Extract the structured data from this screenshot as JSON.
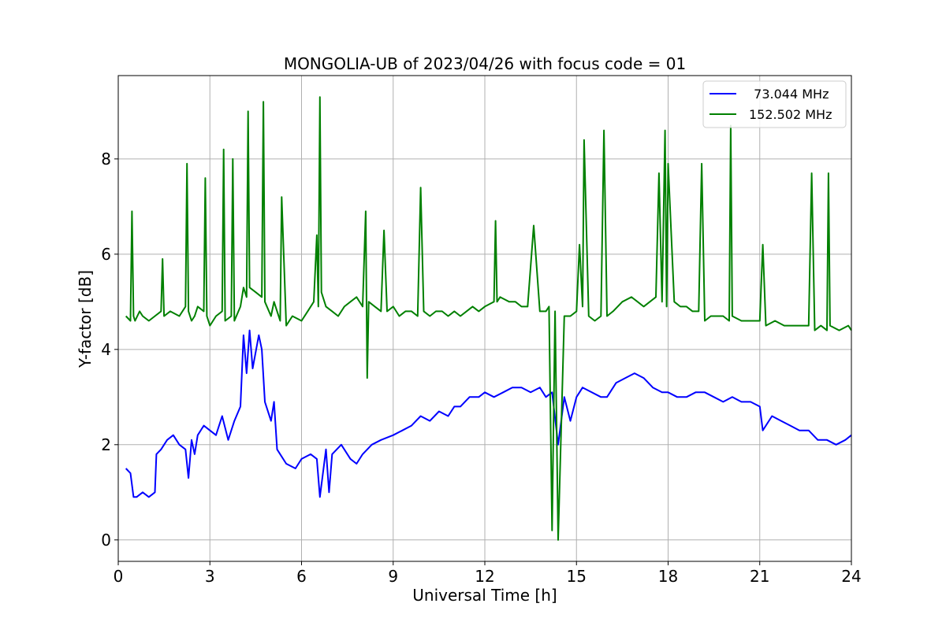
{
  "chart_data": {
    "type": "line",
    "title": "MONGOLIA-UB of 2023/04/26 with focus code = 01",
    "xlabel": "Universal Time [h]",
    "ylabel": "Y-factor [dB]",
    "xlim": [
      0,
      24
    ],
    "ylim": [
      -0.45,
      9.75
    ],
    "xticks": [
      0,
      3,
      6,
      9,
      12,
      15,
      18,
      21,
      24
    ],
    "yticks": [
      0,
      2,
      4,
      6,
      8
    ],
    "grid": true,
    "legend_position": "top-right",
    "series": [
      {
        "name": "  73.044 MHz",
        "color": "#0000ff",
        "x": [
          0.25,
          0.4,
          0.5,
          0.6,
          0.8,
          1.0,
          1.2,
          1.25,
          1.4,
          1.6,
          1.8,
          2.0,
          2.2,
          2.3,
          2.4,
          2.5,
          2.6,
          2.8,
          3.0,
          3.2,
          3.4,
          3.6,
          3.8,
          4.0,
          4.1,
          4.2,
          4.3,
          4.4,
          4.6,
          4.7,
          4.8,
          5.0,
          5.1,
          5.2,
          5.3,
          5.5,
          5.8,
          6.0,
          6.3,
          6.5,
          6.6,
          6.8,
          6.9,
          7.0,
          7.3,
          7.6,
          7.8,
          8.0,
          8.3,
          8.6,
          9.0,
          9.3,
          9.6,
          9.9,
          10.2,
          10.5,
          10.8,
          11.0,
          11.2,
          11.5,
          11.8,
          12.0,
          12.3,
          12.6,
          12.9,
          13.2,
          13.5,
          13.8,
          14.0,
          14.2,
          14.4,
          14.6,
          14.8,
          15.0,
          15.2,
          15.5,
          15.8,
          16.0,
          16.3,
          16.6,
          16.9,
          17.2,
          17.5,
          17.8,
          18.0,
          18.3,
          18.6,
          18.9,
          19.2,
          19.5,
          19.8,
          20.1,
          20.4,
          20.7,
          21.0,
          21.1,
          21.4,
          21.7,
          22.0,
          22.3,
          22.6,
          22.9,
          23.2,
          23.5,
          23.8,
          24.0
        ],
        "y": [
          1.5,
          1.4,
          0.9,
          0.9,
          1.0,
          0.9,
          1.0,
          1.8,
          1.9,
          2.1,
          2.2,
          2.0,
          1.9,
          1.3,
          2.1,
          1.8,
          2.2,
          2.4,
          2.3,
          2.2,
          2.6,
          2.1,
          2.5,
          2.8,
          4.3,
          3.5,
          4.4,
          3.6,
          4.3,
          4.0,
          2.9,
          2.5,
          2.9,
          1.9,
          1.8,
          1.6,
          1.5,
          1.7,
          1.8,
          1.7,
          0.9,
          1.9,
          1.0,
          1.8,
          2.0,
          1.7,
          1.6,
          1.8,
          2.0,
          2.1,
          2.2,
          2.3,
          2.4,
          2.6,
          2.5,
          2.7,
          2.6,
          2.8,
          2.8,
          3.0,
          3.0,
          3.1,
          3.0,
          3.1,
          3.2,
          3.2,
          3.1,
          3.2,
          3.0,
          3.1,
          2.0,
          3.0,
          2.5,
          3.0,
          3.2,
          3.1,
          3.0,
          3.0,
          3.3,
          3.4,
          3.5,
          3.4,
          3.2,
          3.1,
          3.1,
          3.0,
          3.0,
          3.1,
          3.1,
          3.0,
          2.9,
          3.0,
          2.9,
          2.9,
          2.8,
          2.3,
          2.6,
          2.5,
          2.4,
          2.3,
          2.3,
          2.1,
          2.1,
          2.0,
          2.1,
          2.2
        ]
      },
      {
        "name": "152.502 MHz",
        "color": "#008000",
        "x": [
          0.25,
          0.4,
          0.45,
          0.5,
          0.55,
          0.7,
          0.8,
          1.0,
          1.2,
          1.4,
          1.45,
          1.5,
          1.7,
          2.0,
          2.2,
          2.25,
          2.3,
          2.4,
          2.5,
          2.6,
          2.8,
          2.85,
          2.9,
          3.0,
          3.2,
          3.4,
          3.45,
          3.5,
          3.7,
          3.75,
          3.8,
          4.0,
          4.1,
          4.2,
          4.25,
          4.3,
          4.5,
          4.7,
          4.75,
          4.8,
          5.0,
          5.1,
          5.2,
          5.3,
          5.35,
          5.5,
          5.7,
          6.0,
          6.2,
          6.4,
          6.5,
          6.55,
          6.6,
          6.65,
          6.8,
          7.0,
          7.2,
          7.4,
          7.6,
          7.8,
          8.0,
          8.1,
          8.15,
          8.2,
          8.4,
          8.6,
          8.7,
          8.8,
          9.0,
          9.2,
          9.4,
          9.6,
          9.8,
          9.9,
          10.0,
          10.2,
          10.4,
          10.6,
          10.8,
          11.0,
          11.2,
          11.4,
          11.6,
          11.8,
          12.0,
          12.3,
          12.35,
          12.4,
          12.5,
          12.8,
          13.0,
          13.2,
          13.4,
          13.6,
          13.8,
          14.0,
          14.1,
          14.2,
          14.3,
          14.4,
          14.6,
          14.8,
          15.0,
          15.1,
          15.2,
          15.25,
          15.4,
          15.6,
          15.8,
          15.9,
          16.0,
          16.2,
          16.5,
          16.8,
          17.0,
          17.2,
          17.4,
          17.6,
          17.7,
          17.8,
          17.9,
          17.95,
          18.0,
          18.2,
          18.4,
          18.6,
          18.8,
          19.0,
          19.1,
          19.2,
          19.4,
          19.6,
          19.8,
          20.0,
          20.05,
          20.1,
          20.4,
          20.8,
          21.0,
          21.1,
          21.2,
          21.5,
          21.8,
          22.0,
          22.3,
          22.6,
          22.7,
          22.8,
          23.0,
          23.2,
          23.25,
          23.3,
          23.6,
          23.9,
          24.0
        ],
        "y": [
          4.7,
          4.6,
          6.9,
          4.7,
          4.6,
          4.8,
          4.7,
          4.6,
          4.7,
          4.8,
          5.9,
          4.7,
          4.8,
          4.7,
          4.9,
          7.9,
          4.8,
          4.6,
          4.7,
          4.9,
          4.8,
          7.6,
          4.7,
          4.5,
          4.7,
          4.8,
          8.2,
          4.6,
          4.7,
          8.0,
          4.6,
          4.9,
          5.3,
          5.1,
          9.0,
          5.3,
          5.2,
          5.1,
          9.2,
          5.0,
          4.7,
          5.0,
          4.8,
          4.6,
          7.2,
          4.5,
          4.7,
          4.6,
          4.8,
          5.0,
          6.4,
          4.9,
          9.3,
          5.2,
          4.9,
          4.8,
          4.7,
          4.9,
          5.0,
          5.1,
          4.9,
          6.9,
          3.4,
          5.0,
          4.9,
          4.8,
          6.5,
          4.8,
          4.9,
          4.7,
          4.8,
          4.8,
          4.7,
          7.4,
          4.8,
          4.7,
          4.8,
          4.8,
          4.7,
          4.8,
          4.7,
          4.8,
          4.9,
          4.8,
          4.9,
          5.0,
          6.7,
          5.0,
          5.1,
          5.0,
          5.0,
          4.9,
          4.9,
          6.6,
          4.8,
          4.8,
          4.9,
          0.2,
          4.8,
          0.0,
          4.7,
          4.7,
          4.8,
          6.2,
          4.9,
          8.4,
          4.7,
          4.6,
          4.7,
          8.6,
          4.7,
          4.8,
          5.0,
          5.1,
          5.0,
          4.9,
          5.0,
          5.1,
          7.7,
          5.0,
          8.6,
          4.9,
          7.9,
          5.0,
          4.9,
          4.9,
          4.8,
          4.8,
          7.9,
          4.6,
          4.7,
          4.7,
          4.7,
          4.6,
          8.7,
          4.7,
          4.6,
          4.6,
          4.6,
          6.2,
          4.5,
          4.6,
          4.5,
          4.5,
          4.5,
          4.5,
          7.7,
          4.4,
          4.5,
          4.4,
          7.7,
          4.5,
          4.4,
          4.5,
          4.4
        ]
      }
    ]
  }
}
